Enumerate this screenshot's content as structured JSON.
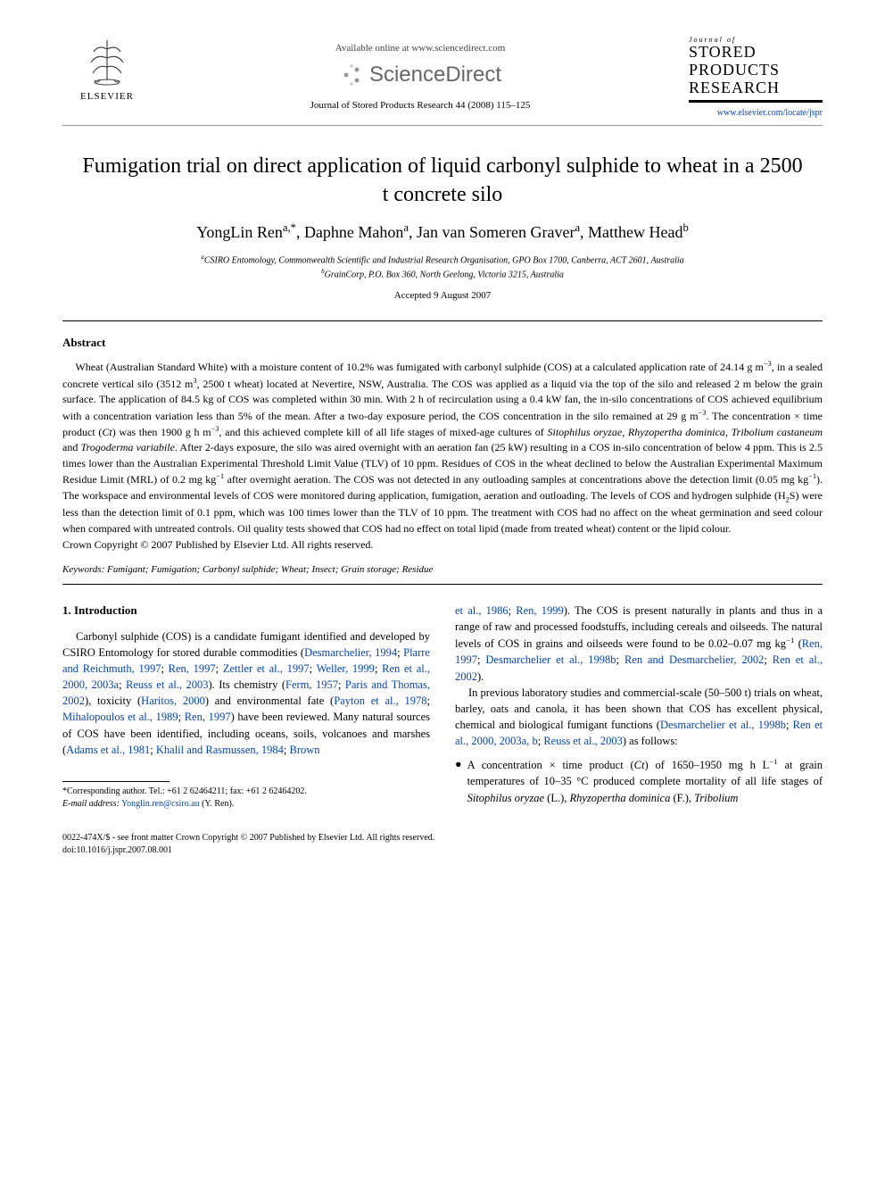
{
  "header": {
    "elsevier_label": "ELSEVIER",
    "available_online": "Available online at www.sciencedirect.com",
    "sciencedirect_label": "ScienceDirect",
    "journal_ref": "Journal of Stored Products Research 44 (2008) 115–125",
    "journal_small": "Journal of",
    "journal_logo_line1": "STORED",
    "journal_logo_line2": "PRODUCTS",
    "journal_logo_line3": "RESEARCH",
    "journal_url": "www.elsevier.com/locate/jspr"
  },
  "title": "Fumigation trial on direct application of liquid carbonyl sulphide to wheat in a 2500 t concrete silo",
  "authors_html": "YongLin Ren<sup>a,*</sup>, Daphne Mahon<sup>a</sup>, Jan van Someren Graver<sup>a</sup>, Matthew Head<sup>b</sup>",
  "affiliations": {
    "a": "CSIRO Entomology, Commonwealth Scientific and Industrial Research Organisation, GPO Box 1700, Canberra, ACT 2601, Australia",
    "b": "GrainCorp, P.O. Box 360, North Geelong, Victoria 3215, Australia"
  },
  "accepted": "Accepted 9 August 2007",
  "abstract": {
    "heading": "Abstract",
    "text_html": "Wheat (Australian Standard White) with a moisture content of 10.2% was fumigated with carbonyl sulphide (COS) at a calculated application rate of 24.14 g m<sup>−3</sup>, in a sealed concrete vertical silo (3512 m<sup>3</sup>, 2500 t wheat) located at Nevertire, NSW, Australia. The COS was applied as a liquid via the top of the silo and released 2 m below the grain surface. The application of 84.5 kg of COS was completed within 30 min. With 2 h of recirculation using a 0.4 kW fan, the in-silo concentrations of COS achieved equilibrium with a concentration variation less than 5% of the mean. After a two-day exposure period, the COS concentration in the silo remained at 29 g m<sup>−3</sup>. The concentration × time product (<span class=\"italic\">Ct</span>) was then 1900 g h m<sup>−3</sup>, and this achieved complete kill of all life stages of mixed-age cultures of <span class=\"italic\">Sitophilus oryzae</span>, <span class=\"italic\">Rhyzopertha dominica</span>, <span class=\"italic\">Tribolium castaneum</span> and <span class=\"italic\">Trogoderma variabile</span>. After 2-days exposure, the silo was aired overnight with an aeration fan (25 kW) resulting in a COS in-silo concentration of below 4 ppm. This is 2.5 times lower than the Australian Experimental Threshold Limit Value (TLV) of 10 ppm. Residues of COS in the wheat declined to below the Australian Experimental Maximum Residue Limit (MRL) of 0.2 mg kg<sup>−1</sup> after overnight aeration. The COS was not detected in any outloading samples at concentrations above the detection limit (0.05 mg kg<sup>−1</sup>). The workspace and environmental levels of COS were monitored during application, fumigation, aeration and outloading. The levels of COS and hydrogen sulphide (H<sub>2</sub>S) were less than the detection limit of 0.1 ppm, which was 100 times lower than the TLV of 10 ppm. The treatment with COS had no affect on the wheat germination and seed colour when compared with untreated controls. Oil quality tests showed that COS had no effect on total lipid (made from treated wheat) content or the lipid colour.",
    "copyright": "Crown Copyright © 2007 Published by Elsevier Ltd. All rights reserved."
  },
  "keywords": {
    "label": "Keywords:",
    "text": "Fumigant; Fumigation; Carbonyl sulphide; Wheat; Insect; Grain storage; Residue"
  },
  "body": {
    "section_heading": "1. Introduction",
    "col1_para1_html": "Carbonyl sulphide (COS) is a candidate fumigant identified and developed by CSIRO Entomology for stored durable commodities (<span class=\"ref-link\">Desmarchelier, 1994</span>; <span class=\"ref-link\">Plarre and Reichmuth, 1997</span>; <span class=\"ref-link\">Ren, 1997</span>; <span class=\"ref-link\">Zettler et al., 1997</span>; <span class=\"ref-link\">Weller, 1999</span>; <span class=\"ref-link\">Ren et al., 2000, 2003a</span>; <span class=\"ref-link\">Reuss et al., 2003</span>). Its chemistry (<span class=\"ref-link\">Ferm, 1957</span>; <span class=\"ref-link\">Paris and Thomas, 2002</span>), toxicity (<span class=\"ref-link\">Haritos, 2000</span>) and environmental fate (<span class=\"ref-link\">Payton et al., 1978</span>; <span class=\"ref-link\">Mihalopoulos et al., 1989</span>; <span class=\"ref-link\">Ren, 1997</span>) have been reviewed. Many natural sources of COS have been identified, including oceans, soils, volcanoes and marshes (<span class=\"ref-link\">Adams et al., 1981</span>; <span class=\"ref-link\">Khalil and Rasmussen, 1984</span>; <span class=\"ref-link\">Brown</span>",
    "col2_para1_html": "<span class=\"ref-link\">et al., 1986</span>; <span class=\"ref-link\">Ren, 1999</span>). The COS is present naturally in plants and thus in a range of raw and processed foodstuffs, including cereals and oilseeds. The natural levels of COS in grains and oilseeds were found to be 0.02–0.07 mg kg<sup>−1</sup> (<span class=\"ref-link\">Ren, 1997</span>; <span class=\"ref-link\">Desmarchelier et al., 1998b</span>; <span class=\"ref-link\">Ren and Desmarchelier, 2002</span>; <span class=\"ref-link\">Ren et al., 2002</span>).",
    "col2_para2_html": "In previous laboratory studies and commercial-scale (50–500 t) trials on wheat, barley, oats and canola, it has been shown that COS has excellent physical, chemical and biological fumigant functions (<span class=\"ref-link\">Desmarchelier et al., 1998b</span>; <span class=\"ref-link\">Ren et al., 2000, 2003a, b</span>; <span class=\"ref-link\">Reuss et al., 2003</span>) as follows:",
    "bullet_html": "A concentration × time product (<span class=\"italic\">Ct</span>) of 1650–1950 mg h L<sup>−1</sup> at grain temperatures of 10–35 °C produced complete mortality of all life stages of <span class=\"italic\">Sitophilus oryzae</span> (L.), <span class=\"italic\">Rhyzopertha dominica</span> (F.), <span class=\"italic\">Tribolium</span>"
  },
  "footnote": {
    "corresponding": "*Corresponding author. Tel.: +61 2 62464211; fax: +61 2 62464202.",
    "email_label": "E-mail address:",
    "email": "Yonglin.ren@csiro.au",
    "email_name": "(Y. Ren)."
  },
  "footer": {
    "line1": "0022-474X/$ - see front matter Crown Copyright © 2007 Published by Elsevier Ltd. All rights reserved.",
    "line2": "doi:10.1016/j.jspr.2007.08.001"
  },
  "colors": {
    "link": "#0645ad",
    "text": "#000000",
    "sd_gray": "#666666"
  }
}
